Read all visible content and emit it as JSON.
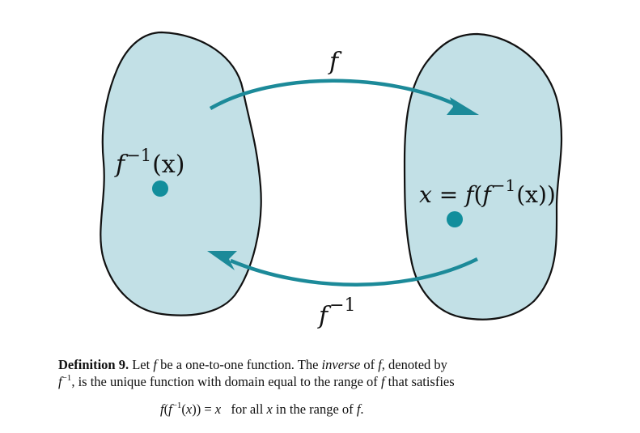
{
  "colors": {
    "blob_fill": "#c2e0e6",
    "outline": "#111111",
    "arrow": "#1c8a99",
    "point": "#128e9c"
  },
  "diagram": {
    "top_arrow_label_f": "f",
    "bottom_arrow_label_f": "f",
    "bottom_arrow_label_sup": "−1",
    "left_point_label": {
      "f": "f",
      "sup": "−1",
      "arg": "(x)"
    },
    "right_point_label": {
      "x": "x",
      "eq": " = ",
      "f": "f",
      "open": "(",
      "f2": "f",
      "sup": "−1",
      "arg": "(x))"
    }
  },
  "definition": {
    "heading": "Definition 9.",
    "t1": " Let ",
    "f1": "f",
    "t2": " be a one-to-one function. The ",
    "inverse": "inverse",
    "t3": " of ",
    "f2": "f",
    "t4": ", denoted by",
    "f3": "f",
    "sup": "−1",
    "t5": ", is the unique function with domain equal to the range of ",
    "f4": "f",
    "t6": " that satisfies"
  },
  "formula": {
    "f": "f",
    "open": "(",
    "f2": "f",
    "sup": "−1",
    "open2": "(",
    "x": "x",
    "close": ")) = ",
    "x2": "x",
    "t": "   for all ",
    "x3": "x",
    "t2": " in the range of ",
    "f3": "f",
    "dot": "."
  }
}
